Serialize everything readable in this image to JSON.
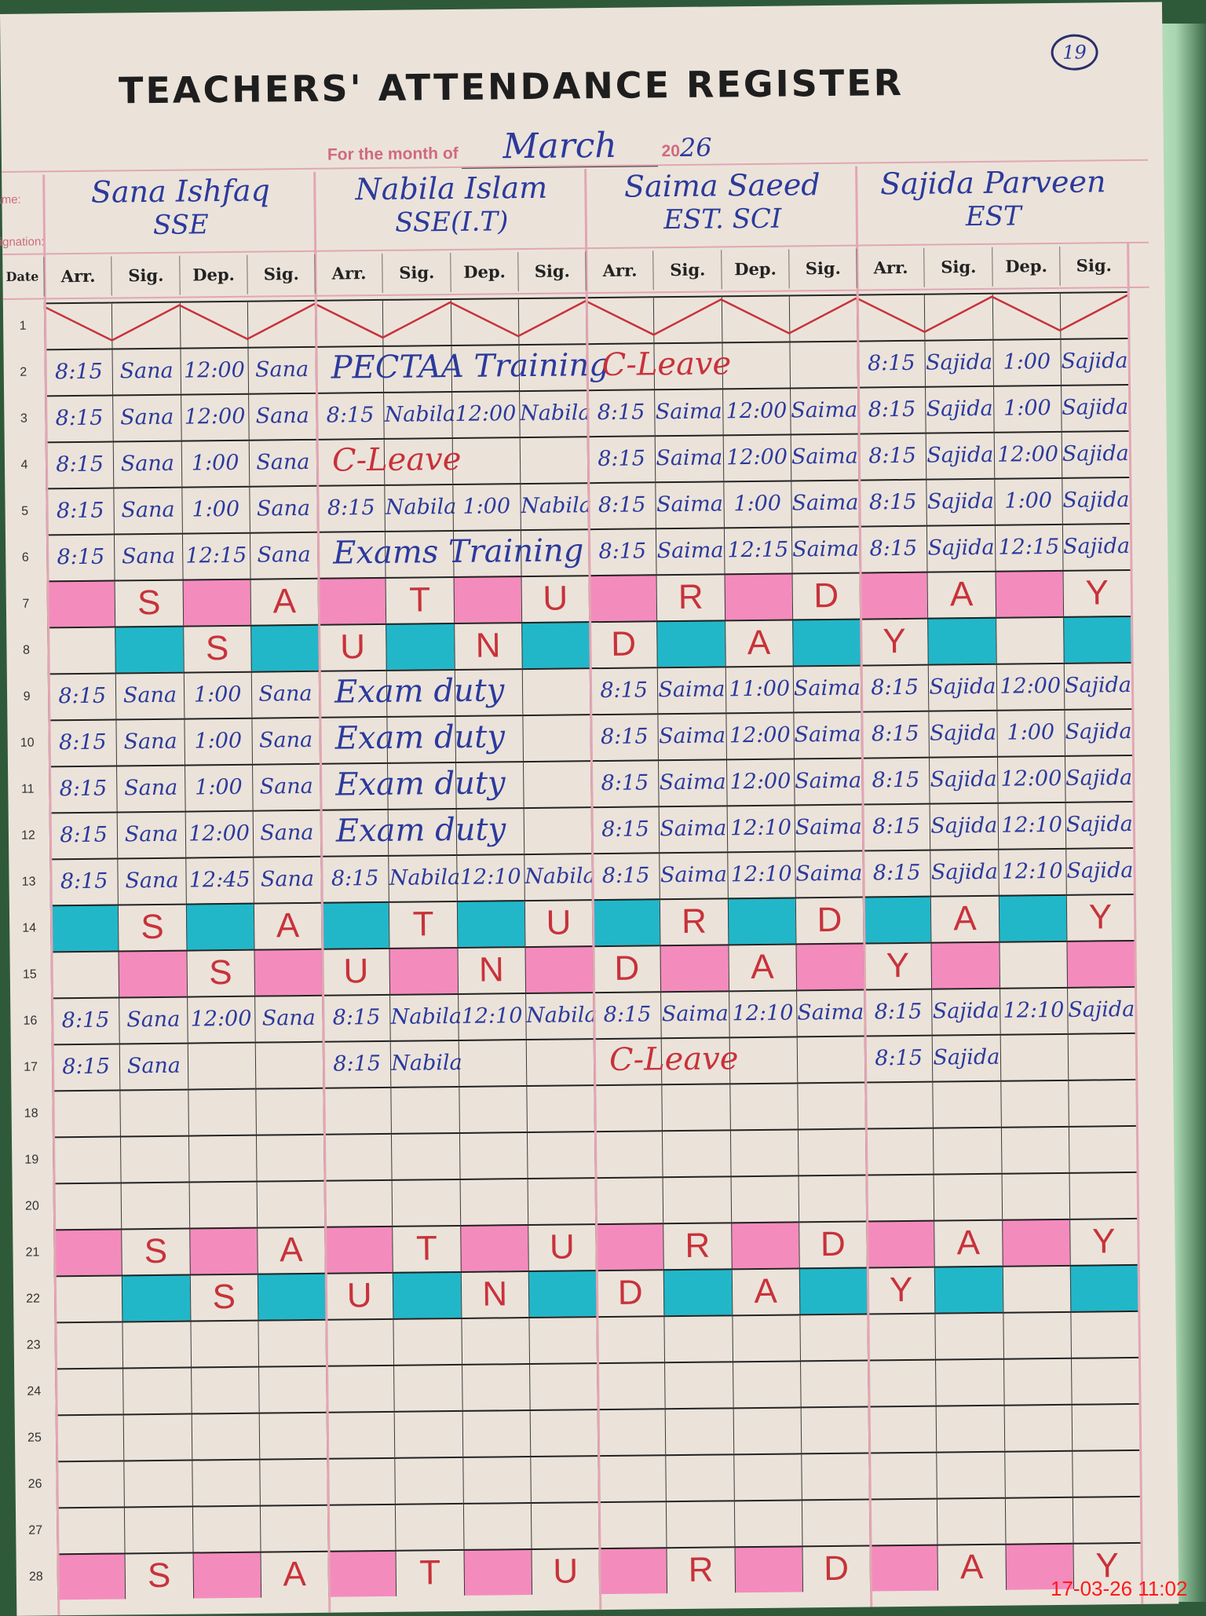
{
  "title": "TEACHERS' ATTENDANCE REGISTER",
  "page_number": "19",
  "month_label": "For the month of",
  "month": "March",
  "year_prefix": "20",
  "year_hand": "26",
  "name_label": "Name:",
  "designation_label": "Designation:",
  "date_header": "Date",
  "column_headers": [
    "Arr.",
    "Sig.",
    "Dep.",
    "Sig."
  ],
  "colors": {
    "ink_blue": "#2b3a9c",
    "ink_red": "#c8323a",
    "highlight_pink": "#f48bbd",
    "highlight_teal": "#21b7c9",
    "rule_pink": "#e2a6b4"
  },
  "teachers": [
    {
      "name": "Sana Ishfaq",
      "designation": "SSE"
    },
    {
      "name": "Nabila Islam",
      "designation": "SSE(I.T)"
    },
    {
      "name": "Saima Saeed",
      "designation": "EST. SCI"
    },
    {
      "name": "Sajida Parveen",
      "designation": "EST"
    }
  ],
  "rows": [
    {
      "date": "1",
      "zigzag": true
    },
    {
      "date": "2",
      "entries": [
        [
          "8:15",
          "Sana",
          "12:00",
          "Sana"
        ],
        {
          "note": "PECTAA Training",
          "color": "blue"
        },
        {
          "note": "C-Leave",
          "color": "red"
        },
        [
          "8:15",
          "Sajida",
          "1:00",
          "Sajida"
        ]
      ]
    },
    {
      "date": "3",
      "entries": [
        [
          "8:15",
          "Sana",
          "12:00",
          "Sana"
        ],
        [
          "8:15",
          "Nabila",
          "12:00",
          "Nabila"
        ],
        [
          "8:15",
          "Saima",
          "12:00",
          "Saima"
        ],
        [
          "8:15",
          "Sajida",
          "1:00",
          "Sajida"
        ]
      ]
    },
    {
      "date": "4",
      "entries": [
        [
          "8:15",
          "Sana",
          "1:00",
          "Sana"
        ],
        {
          "note": "C-Leave",
          "color": "red"
        },
        [
          "8:15",
          "Saima",
          "12:00",
          "Saima"
        ],
        [
          "8:15",
          "Sajida",
          "12:00",
          "Sajida"
        ]
      ]
    },
    {
      "date": "5",
      "entries": [
        [
          "8:15",
          "Sana",
          "1:00",
          "Sana"
        ],
        [
          "8:15",
          "Nabila",
          "1:00",
          "Nabila"
        ],
        [
          "8:15",
          "Saima",
          "1:00",
          "Saima"
        ],
        [
          "8:15",
          "Sajida",
          "1:00",
          "Sajida"
        ]
      ]
    },
    {
      "date": "6",
      "entries": [
        [
          "8:15",
          "Sana",
          "12:15",
          "Sana"
        ],
        {
          "note": "Exams Training",
          "color": "blue"
        },
        [
          "8:15",
          "Saima",
          "12:15",
          "Saima"
        ],
        [
          "8:15",
          "Sajida",
          "12:15",
          "Sajida"
        ]
      ]
    },
    {
      "date": "7",
      "weekend": "SATURDAY",
      "highlight": "pink"
    },
    {
      "date": "8",
      "weekend": "SUNDAY",
      "highlight": "teal"
    },
    {
      "date": "9",
      "entries": [
        [
          "8:15",
          "Sana",
          "1:00",
          "Sana"
        ],
        {
          "note": "Exam duty",
          "color": "blue"
        },
        [
          "8:15",
          "Saima",
          "11:00",
          "Saima"
        ],
        [
          "8:15",
          "Sajida",
          "12:00",
          "Sajida"
        ]
      ]
    },
    {
      "date": "10",
      "entries": [
        [
          "8:15",
          "Sana",
          "1:00",
          "Sana"
        ],
        {
          "note": "Exam duty",
          "color": "blue"
        },
        [
          "8:15",
          "Saima",
          "12:00",
          "Saima"
        ],
        [
          "8:15",
          "Sajida",
          "1:00",
          "Sajida"
        ]
      ]
    },
    {
      "date": "11",
      "entries": [
        [
          "8:15",
          "Sana",
          "1:00",
          "Sana"
        ],
        {
          "note": "Exam duty",
          "color": "blue"
        },
        [
          "8:15",
          "Saima",
          "12:00",
          "Saima"
        ],
        [
          "8:15",
          "Sajida",
          "12:00",
          "Sajida"
        ]
      ]
    },
    {
      "date": "12",
      "entries": [
        [
          "8:15",
          "Sana",
          "12:00",
          "Sana"
        ],
        {
          "note": "Exam duty",
          "color": "blue"
        },
        [
          "8:15",
          "Saima",
          "12:10",
          "Saima"
        ],
        [
          "8:15",
          "Sajida",
          "12:10",
          "Sajida"
        ]
      ]
    },
    {
      "date": "13",
      "entries": [
        [
          "8:15",
          "Sana",
          "12:45",
          "Sana"
        ],
        [
          "8:15",
          "Nabila",
          "12:10",
          "Nabila"
        ],
        [
          "8:15",
          "Saima",
          "12:10",
          "Saima"
        ],
        [
          "8:15",
          "Sajida",
          "12:10",
          "Sajida"
        ]
      ]
    },
    {
      "date": "14",
      "weekend": "SATURDAY",
      "highlight": "teal"
    },
    {
      "date": "15",
      "weekend": "SUNDAY",
      "highlight": "pink"
    },
    {
      "date": "16",
      "entries": [
        [
          "8:15",
          "Sana",
          "12:00",
          "Sana"
        ],
        [
          "8:15",
          "Nabila",
          "12:10",
          "Nabila"
        ],
        [
          "8:15",
          "Saima",
          "12:10",
          "Saima"
        ],
        [
          "8:15",
          "Sajida",
          "12:10",
          "Sajida"
        ]
      ]
    },
    {
      "date": "17",
      "entries": [
        [
          "8:15",
          "Sana",
          "",
          ""
        ],
        [
          "8:15",
          "Nabila",
          "",
          ""
        ],
        {
          "note": "C-Leave",
          "color": "red"
        },
        [
          "8:15",
          "Sajida",
          "",
          ""
        ]
      ]
    },
    {
      "date": "18"
    },
    {
      "date": "19"
    },
    {
      "date": "20"
    },
    {
      "date": "21",
      "weekend": "SATURDAY",
      "highlight": "pink"
    },
    {
      "date": "22",
      "weekend": "SUNDAY",
      "highlight": "teal"
    },
    {
      "date": "23"
    },
    {
      "date": "24"
    },
    {
      "date": "25"
    },
    {
      "date": "26"
    },
    {
      "date": "27"
    },
    {
      "date": "28",
      "weekend": "SATURDAY",
      "highlight": "pink"
    }
  ],
  "timestamp": "17-03-26  11:02"
}
